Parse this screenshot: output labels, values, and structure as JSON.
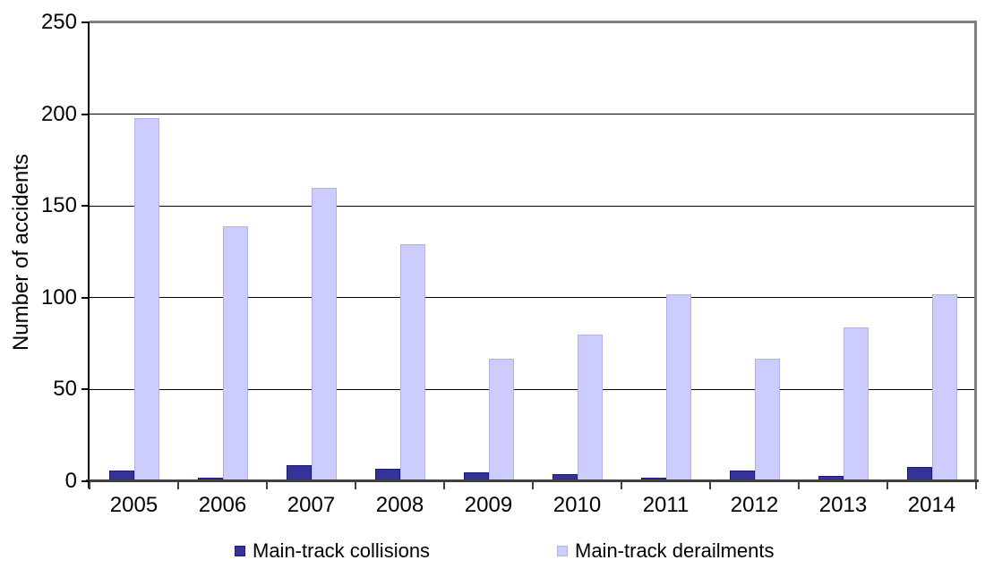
{
  "chart_data": {
    "type": "bar",
    "title": "",
    "categories": [
      "2005",
      "2006",
      "2007",
      "2008",
      "2009",
      "2010",
      "2011",
      "2012",
      "2013",
      "2014"
    ],
    "series": [
      {
        "name": "Main-track collisions",
        "color": "#333399",
        "border_color": "#1a1a70",
        "values": [
          6,
          2,
          9,
          7,
          5,
          4,
          2,
          6,
          3,
          8
        ]
      },
      {
        "name": "Main-track derailments",
        "color": "#ccccff",
        "border_color": "#b0b0e4",
        "values": [
          198,
          139,
          160,
          129,
          67,
          80,
          102,
          67,
          84,
          102
        ]
      }
    ],
    "xlabel": "",
    "ylabel": "Number of accidents",
    "ylim": [
      0,
      250
    ],
    "ytick_step": 50,
    "y_tick_labels": [
      "0",
      "50",
      "100",
      "150",
      "200",
      "250"
    ],
    "grid": true,
    "legend_position": "bottom"
  },
  "colors": {
    "background": "#ffffff",
    "gridline": "#000000",
    "y_axis_line": "#000000",
    "x_axis_line": "#404040",
    "plot_border": "#808080",
    "text": "#000000"
  }
}
